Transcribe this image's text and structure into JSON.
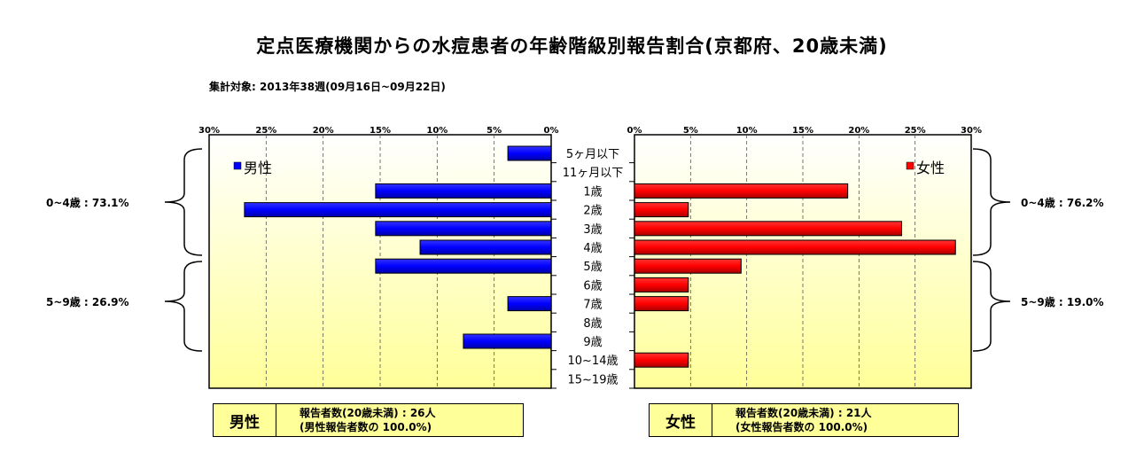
{
  "title": "定点医療機関からの水痘患者の年齢階級別報告割合(京都府、20歳未満)",
  "subtitle": "集計対象: 2013年38週(09月16日~09月22日)",
  "colors": {
    "male": "#0000ff",
    "female": "#ff0000",
    "plot_bg_top": "#ffffff",
    "plot_bg_bottom": "#ffff99",
    "info_bg": "#ffff99"
  },
  "chart_data": {
    "type": "bar",
    "orientation": "horizontal",
    "categories": [
      "5ヶ月以下",
      "11ヶ月以下",
      "1歳",
      "2歳",
      "3歳",
      "4歳",
      "5歳",
      "6歳",
      "7歳",
      "8歳",
      "9歳",
      "10~14歳",
      "15~19歳"
    ],
    "xlim": [
      0,
      30
    ],
    "ticks": [
      "0%",
      "5%",
      "10%",
      "15%",
      "20%",
      "25%",
      "30%"
    ],
    "tick_values": [
      0,
      5,
      10,
      15,
      20,
      25,
      30
    ],
    "grid": "vertical dashed",
    "series": [
      {
        "name": "男性",
        "values": [
          3.8,
          0,
          15.4,
          26.9,
          15.4,
          11.5,
          15.4,
          0,
          3.8,
          0,
          7.7,
          0,
          0
        ]
      },
      {
        "name": "女性",
        "values": [
          0,
          0,
          19.0,
          4.8,
          23.8,
          28.6,
          9.5,
          4.8,
          4.8,
          0,
          0,
          4.8,
          0
        ]
      }
    ]
  },
  "brackets": {
    "male_0_4": "0~4歳 : 73.1%",
    "male_5_9": "5~9歳 : 26.9%",
    "female_0_4": "0~4歳 : 76.2%",
    "female_5_9": "5~9歳 : 19.0%"
  },
  "info": {
    "male": {
      "label": "男性",
      "line1": "報告者数(20歳未満) : 26人",
      "line2": "(男性報告者数の 100.0%)"
    },
    "female": {
      "label": "女性",
      "line1": "報告者数(20歳未満) : 21人",
      "line2": "(女性報告者数の 100.0%)"
    }
  }
}
